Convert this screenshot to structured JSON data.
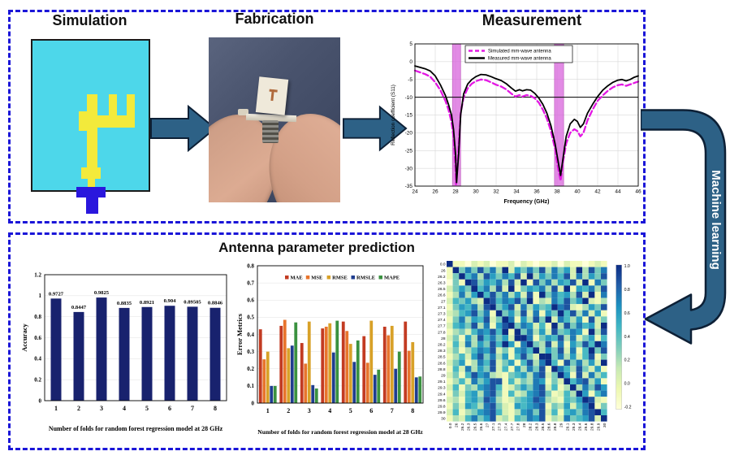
{
  "top_section": {
    "simulation_title": "Simulation",
    "fabrication_title": "Fabrication",
    "measurement_title": "Measurement"
  },
  "machine_learning": {
    "label": "Machine learning",
    "arrow_fill": "#2d6186",
    "arrow_outline": "#0d2036"
  },
  "bottom_section": {
    "title": "Antenna parameter prediction"
  },
  "simulation_art": {
    "substrate": "#4dd7ea",
    "patch": "#f3ea3b",
    "feed": "#2a17dd",
    "outline": "#1b1b1b"
  },
  "flow_arrow_colors": {
    "fill": "#2d6186",
    "outline": "#0d2036"
  },
  "page": {
    "dashed_border": "#1a15d8",
    "background": "#ffffff"
  },
  "chart_data": [
    {
      "id": "s11",
      "type": "line",
      "title": "Measurement",
      "xlabel": "Frequency (GHz)",
      "ylabel": "Reflection coefficient (S11)",
      "xlim": [
        24,
        46
      ],
      "ylim": [
        -35,
        5
      ],
      "xticks": [
        24,
        26,
        28,
        30,
        32,
        34,
        36,
        38,
        40,
        42,
        44,
        46
      ],
      "yticks": [
        5,
        0,
        -5,
        -10,
        -15,
        -20,
        -25,
        -30,
        -35
      ],
      "grid": true,
      "hline": -10,
      "band_color": "#d965dd",
      "band_edge": "#b23ab2",
      "bands": [
        {
          "from": 27.7,
          "to": 28.5
        },
        {
          "from": 37.75,
          "to": 38.65
        }
      ],
      "legend_position": "top-inside",
      "series": [
        {
          "name": "Simulated mm-wave antenna",
          "color": "#e318e3",
          "dash": true,
          "points": [
            [
              24,
              -2.5
            ],
            [
              24.5,
              -3.0
            ],
            [
              25,
              -3.5
            ],
            [
              25.5,
              -4.2
            ],
            [
              26,
              -5.8
            ],
            [
              26.5,
              -8
            ],
            [
              27,
              -11
            ],
            [
              27.3,
              -13.5
            ],
            [
              27.6,
              -17
            ],
            [
              27.8,
              -21
            ],
            [
              28.0,
              -30
            ],
            [
              28.05,
              -34.5
            ],
            [
              28.3,
              -24
            ],
            [
              28.5,
              -14.5
            ],
            [
              28.8,
              -10
            ],
            [
              29.2,
              -7.5
            ],
            [
              29.6,
              -6.2
            ],
            [
              30,
              -5.5
            ],
            [
              30.5,
              -5.0
            ],
            [
              31,
              -5.2
            ],
            [
              31.5,
              -5.8
            ],
            [
              32,
              -6.5
            ],
            [
              32.5,
              -7
            ],
            [
              33,
              -7.8
            ],
            [
              33.5,
              -9
            ],
            [
              33.9,
              -9.8
            ],
            [
              34.3,
              -9.4
            ],
            [
              34.6,
              -9.8
            ],
            [
              35,
              -9.4
            ],
            [
              35.4,
              -9.6
            ],
            [
              35.8,
              -10.3
            ],
            [
              36.2,
              -11.5
            ],
            [
              36.6,
              -13.5
            ],
            [
              37,
              -16
            ],
            [
              37.4,
              -19.5
            ],
            [
              37.8,
              -24.5
            ],
            [
              38.1,
              -30
            ],
            [
              38.35,
              -33.5
            ],
            [
              38.6,
              -28
            ],
            [
              38.9,
              -23
            ],
            [
              39.3,
              -20
            ],
            [
              39.7,
              -19
            ],
            [
              40.0,
              -19.5
            ],
            [
              40.3,
              -21
            ],
            [
              40.6,
              -20
            ],
            [
              41,
              -16.5
            ],
            [
              41.5,
              -13.5
            ],
            [
              42,
              -11
            ],
            [
              42.5,
              -9.5
            ],
            [
              43,
              -8.2
            ],
            [
              43.5,
              -7.2
            ],
            [
              44,
              -6.6
            ],
            [
              44.4,
              -6.4
            ],
            [
              44.8,
              -6.8
            ],
            [
              45.2,
              -6.4
            ],
            [
              45.6,
              -6.0
            ],
            [
              46,
              -5.6
            ]
          ]
        },
        {
          "name": "Measured mm-wave antenna",
          "color": "#000000",
          "dash": false,
          "points": [
            [
              24,
              -1.2
            ],
            [
              24.5,
              -1.6
            ],
            [
              25,
              -2.0
            ],
            [
              25.5,
              -2.6
            ],
            [
              26,
              -4
            ],
            [
              26.5,
              -6.5
            ],
            [
              27,
              -9.5
            ],
            [
              27.3,
              -12
            ],
            [
              27.6,
              -15
            ],
            [
              27.8,
              -19
            ],
            [
              28.0,
              -26
            ],
            [
              28.1,
              -34
            ],
            [
              28.3,
              -26
            ],
            [
              28.5,
              -15
            ],
            [
              28.8,
              -9
            ],
            [
              29.2,
              -6.3
            ],
            [
              29.6,
              -5
            ],
            [
              30,
              -4.2
            ],
            [
              30.5,
              -3.6
            ],
            [
              31,
              -3.7
            ],
            [
              31.5,
              -4.2
            ],
            [
              32,
              -4.8
            ],
            [
              32.5,
              -5.3
            ],
            [
              33,
              -6.2
            ],
            [
              33.5,
              -7.4
            ],
            [
              33.9,
              -8.3
            ],
            [
              34.3,
              -7.9
            ],
            [
              34.6,
              -8.2
            ],
            [
              35,
              -7.9
            ],
            [
              35.4,
              -8.0
            ],
            [
              35.8,
              -8.9
            ],
            [
              36.2,
              -10.2
            ],
            [
              36.6,
              -12
            ],
            [
              37,
              -14.5
            ],
            [
              37.4,
              -18
            ],
            [
              37.8,
              -23
            ],
            [
              38.1,
              -28
            ],
            [
              38.35,
              -32
            ],
            [
              38.6,
              -27
            ],
            [
              38.9,
              -21
            ],
            [
              39.3,
              -17.5
            ],
            [
              39.7,
              -16.2
            ],
            [
              40.0,
              -16.8
            ],
            [
              40.3,
              -18.5
            ],
            [
              40.6,
              -17.5
            ],
            [
              41,
              -14.5
            ],
            [
              41.5,
              -12
            ],
            [
              42,
              -9.8
            ],
            [
              42.5,
              -8
            ],
            [
              43,
              -6.8
            ],
            [
              43.5,
              -5.8
            ],
            [
              44,
              -5.2
            ],
            [
              44.4,
              -5.0
            ],
            [
              44.8,
              -5.4
            ],
            [
              45.2,
              -5.0
            ],
            [
              45.6,
              -4.4
            ],
            [
              46,
              -4.0
            ]
          ]
        }
      ]
    },
    {
      "id": "accuracy",
      "type": "bar",
      "categories": [
        "1",
        "2",
        "3",
        "4",
        "5",
        "6",
        "7",
        "8"
      ],
      "values": [
        0.9727,
        0.8447,
        0.9825,
        0.8835,
        0.8921,
        0.904,
        0.89505,
        0.8846
      ],
      "value_labels": [
        "0.9727",
        "0.8447",
        "0.9825",
        "0.8835",
        "0.8921",
        "0.904",
        "0.89505",
        "0.8846"
      ],
      "xlabel": "Number of folds for random forest regression model at 28 GHz",
      "ylabel": "Accuracy",
      "ylim": [
        0,
        1.2
      ],
      "yticks": [
        0,
        0.2,
        0.4,
        0.6,
        0.8,
        1,
        1.2
      ],
      "ytick_labels": [
        "0",
        "0.2",
        "0.4",
        "0.6",
        "0.8",
        "1",
        "1.2"
      ],
      "grid": true,
      "bar_color": "#18226e"
    },
    {
      "id": "errors",
      "type": "grouped-bar",
      "categories": [
        "1",
        "2",
        "3",
        "4",
        "5",
        "6",
        "7",
        "8"
      ],
      "series": [
        {
          "name": "MAE",
          "color": "#c23b22",
          "values": [
            0.43,
            0.45,
            0.35,
            0.435,
            0.475,
            0.39,
            0.445,
            0.475
          ]
        },
        {
          "name": "MSE",
          "color": "#e8742c",
          "values": [
            0.255,
            0.485,
            0.23,
            0.445,
            0.42,
            0.235,
            0.395,
            0.305
          ]
        },
        {
          "name": "RMSE",
          "color": "#d8a128",
          "values": [
            0.3,
            0.32,
            0.475,
            0.465,
            0.345,
            0.48,
            0.45,
            0.355
          ]
        },
        {
          "name": "RMSLE",
          "color": "#1f3d8f",
          "values": [
            0.1,
            0.335,
            0.105,
            0.295,
            0.24,
            0.165,
            0.2,
            0.15
          ]
        },
        {
          "name": "MAPE",
          "color": "#3a9140",
          "values": [
            0.1,
            0.47,
            0.085,
            0.48,
            0.365,
            0.195,
            0.3,
            0.155
          ]
        }
      ],
      "xlabel": "Number of folds for random forest regression model at 28 GHz",
      "ylabel": "Error Metrics",
      "ylim": [
        0,
        0.8
      ],
      "yticks": [
        0,
        0.1,
        0.2,
        0.3,
        0.4,
        0.5,
        0.6,
        0.7,
        0.8
      ],
      "ytick_labels": [
        "0",
        "0.1",
        "0.2",
        "0.3",
        "0.4",
        "0.5",
        "0.6",
        "0.7",
        "0.8"
      ],
      "grid": true,
      "legend_position": "top-inside"
    },
    {
      "id": "corr",
      "type": "heatmap",
      "labels": [
        "0.0",
        "26",
        "26.2",
        "26.3",
        "26.5",
        "26.6",
        "27",
        "27.1",
        "27.3",
        "27.4",
        "27.7",
        "27.8",
        "28",
        "28.2",
        "28.3",
        "28.5",
        "28.6",
        "28.8",
        "29",
        "29.1",
        "29.3",
        "29.4",
        "29.6",
        "29.8",
        "29.9",
        "30"
      ],
      "value_min": -0.2,
      "value_max": 1.0,
      "encoding": "each digit 0-9 maps linearly from value_min to value_max; values estimated from cell colors",
      "matrix_codes": [
        "91102120112021011202110121",
        "19474847392647483746293847",
        "14957386475829364758273648",
        "04198465738291847365829174",
        "24649573829146573829165738",
        "13736958473628194756382917",
        "25463298576849132758469213",
        "14657389468273645978213648",
        "23568471946382716495837261",
        "14736582497163849275361824",
        "25648371689476251938475629",
        "13425768591947362845761938",
        "24163857462997146583724615",
        "15273648596179438271648597",
        "24135768241675936482715948",
        "13526847361584299473625814",
        "24613758246158379518473629",
        "15273648251637481975384261",
        "24158673214563782496182735",
        "13527468815243761429578361",
        "25143678512464782513937486",
        "14256378415236784125396157",
        "23156487312456873215469821",
        "14265378421656781436257914",
        "25134678521367482515647895",
        "13257468231547681327456829"
      ],
      "colorbar_ticks": [
        "1.0",
        "0.8",
        "0.6",
        "0.4",
        "0.2",
        "0.0",
        "-0.2"
      ],
      "colormap": [
        "#ffffd9",
        "#edf8b1",
        "#c7e9b4",
        "#7fcdbb",
        "#41b6c4",
        "#1d91c0",
        "#225ea8",
        "#0c2c84"
      ]
    }
  ]
}
